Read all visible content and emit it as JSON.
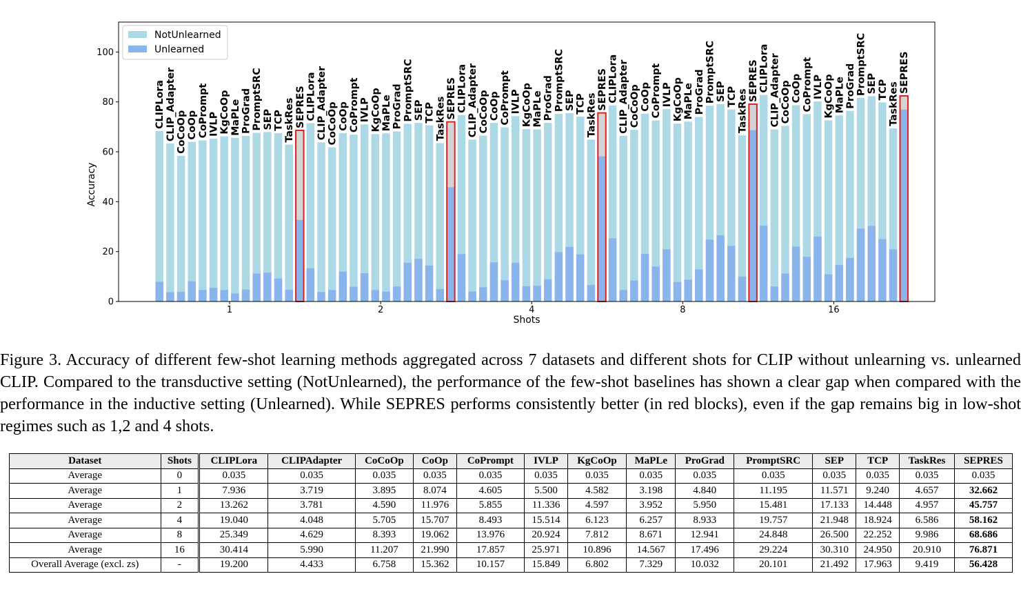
{
  "chart_data": {
    "type": "bar",
    "xlabel": "Shots",
    "ylabel": "Accuracy",
    "ylim": [
      0,
      112
    ],
    "yticks": [
      0,
      20,
      40,
      60,
      80,
      100
    ],
    "legend": {
      "placement": "top-left",
      "entries": [
        "NotUnlearned",
        "Unlearned"
      ]
    },
    "colors": {
      "NotUnlearned": "#add8e6",
      "Unlearned": "#8ab4ec",
      "highlight": "#e02020"
    },
    "highlight_method": "SEPRES",
    "groups": [
      "1",
      "2",
      "4",
      "8",
      "16"
    ],
    "methods": [
      "CLIPLora",
      "CLIP_Adapter",
      "CoCoOp",
      "CoOp",
      "CoPrompt",
      "IVLP",
      "KgCoOp",
      "MaPLe",
      "ProGrad",
      "PromptSRC",
      "SEP",
      "TCP",
      "TaskRes",
      "SEPRES"
    ],
    "series": [
      {
        "name": "NotUnlearned",
        "values": [
          [
            68.3,
            63.3,
            58.4,
            64.0,
            64.6,
            65.3,
            66.2,
            65.6,
            66.4,
            67.6,
            67.9,
            67.5,
            62.9,
            68.6
          ],
          [
            71.5,
            63.8,
            61.8,
            67.5,
            66.9,
            71.0,
            67.1,
            67.4,
            68.2,
            71.2,
            71.6,
            70.6,
            63.5,
            72.0
          ],
          [
            74.7,
            64.9,
            66.5,
            71.6,
            69.8,
            74.3,
            69.1,
            69.0,
            71.6,
            75.2,
            75.5,
            74.1,
            64.9,
            75.6
          ],
          [
            78.6,
            66.4,
            68.8,
            75.3,
            72.6,
            77.1,
            71.3,
            72.1,
            74.0,
            78.5,
            79.1,
            77.0,
            66.6,
            79.1
          ],
          [
            82.8,
            69.0,
            70.4,
            78.7,
            75.1,
            80.2,
            72.6,
            74.6,
            76.4,
            81.6,
            82.3,
            79.8,
            69.4,
            82.4
          ]
        ]
      },
      {
        "name": "Unlearned",
        "values": [
          [
            7.9,
            3.7,
            3.9,
            8.1,
            4.6,
            5.5,
            4.6,
            3.2,
            4.8,
            11.2,
            11.6,
            9.2,
            4.7,
            32.7
          ],
          [
            13.3,
            3.8,
            4.6,
            12.0,
            5.9,
            11.3,
            4.6,
            4.0,
            6.0,
            15.5,
            17.1,
            14.4,
            5.0,
            45.8
          ],
          [
            19.0,
            4.0,
            5.7,
            15.7,
            8.5,
            15.5,
            6.1,
            6.3,
            8.9,
            19.8,
            21.9,
            18.9,
            6.6,
            58.2
          ],
          [
            25.3,
            4.6,
            8.4,
            19.1,
            14.0,
            20.9,
            7.8,
            8.7,
            12.9,
            24.8,
            26.5,
            22.3,
            10.0,
            68.7
          ],
          [
            30.4,
            6.0,
            11.2,
            22.0,
            17.9,
            26.0,
            10.9,
            14.6,
            17.5,
            29.2,
            30.3,
            25.0,
            20.9,
            76.9
          ]
        ]
      }
    ]
  },
  "caption": "Figure 3. Accuracy of different few-shot learning methods aggregated across 7 datasets and different shots for CLIP without unlearning vs. unlearned CLIP. Compared to the transductive setting (NotUnlearned), the performance of the few-shot baselines has shown a clear gap when compared with the performance in the inductive setting (Unlearned). While SEPRES performs consistently better (in red blocks), even if the gap remains big in low-shot regimes such as 1,2 and 4 shots.",
  "table": {
    "headers": [
      "Dataset",
      "Shots",
      "CLIPLora",
      "CLIPAdapter",
      "CoCoOp",
      "CoOp",
      "CoPrompt",
      "IVLP",
      "KgCoOp",
      "MaPLe",
      "ProGrad",
      "PromptSRC",
      "SEP",
      "TCP",
      "TaskRes",
      "SEPRES"
    ],
    "rows": [
      [
        "Average",
        "0",
        "0.035",
        "0.035",
        "0.035",
        "0.035",
        "0.035",
        "0.035",
        "0.035",
        "0.035",
        "0.035",
        "0.035",
        "0.035",
        "0.035",
        "0.035",
        "0.035"
      ],
      [
        "Average",
        "1",
        "7.936",
        "3.719",
        "3.895",
        "8.074",
        "4.605",
        "5.500",
        "4.582",
        "3.198",
        "4.840",
        "11.195",
        "11.571",
        "9.240",
        "4.657",
        "32.662"
      ],
      [
        "Average",
        "2",
        "13.262",
        "3.781",
        "4.590",
        "11.976",
        "5.855",
        "11.336",
        "4.597",
        "3.952",
        "5.950",
        "15.481",
        "17.133",
        "14.448",
        "4.957",
        "45.757"
      ],
      [
        "Average",
        "4",
        "19.040",
        "4.048",
        "5.705",
        "15.707",
        "8.493",
        "15.514",
        "6.123",
        "6.257",
        "8.933",
        "19.757",
        "21.948",
        "18.924",
        "6.586",
        "58.162"
      ],
      [
        "Average",
        "8",
        "25.349",
        "4.629",
        "8.393",
        "19.062",
        "13.976",
        "20.924",
        "7.812",
        "8.671",
        "12.941",
        "24.848",
        "26.500",
        "22.252",
        "9.986",
        "68.686"
      ],
      [
        "Average",
        "16",
        "30.414",
        "5.990",
        "11.207",
        "21.990",
        "17.857",
        "25.971",
        "10.896",
        "14.567",
        "17.496",
        "29.224",
        "30.310",
        "24.950",
        "20.910",
        "76.871"
      ],
      [
        "Overall Average (excl. zs)",
        "-",
        "19.200",
        "4.433",
        "6.758",
        "15.362",
        "10.157",
        "15.849",
        "6.802",
        "7.329",
        "10.032",
        "20.101",
        "21.492",
        "17.963",
        "9.419",
        "56.428"
      ]
    ],
    "bold_from_row": 1,
    "bold_column": 15
  }
}
